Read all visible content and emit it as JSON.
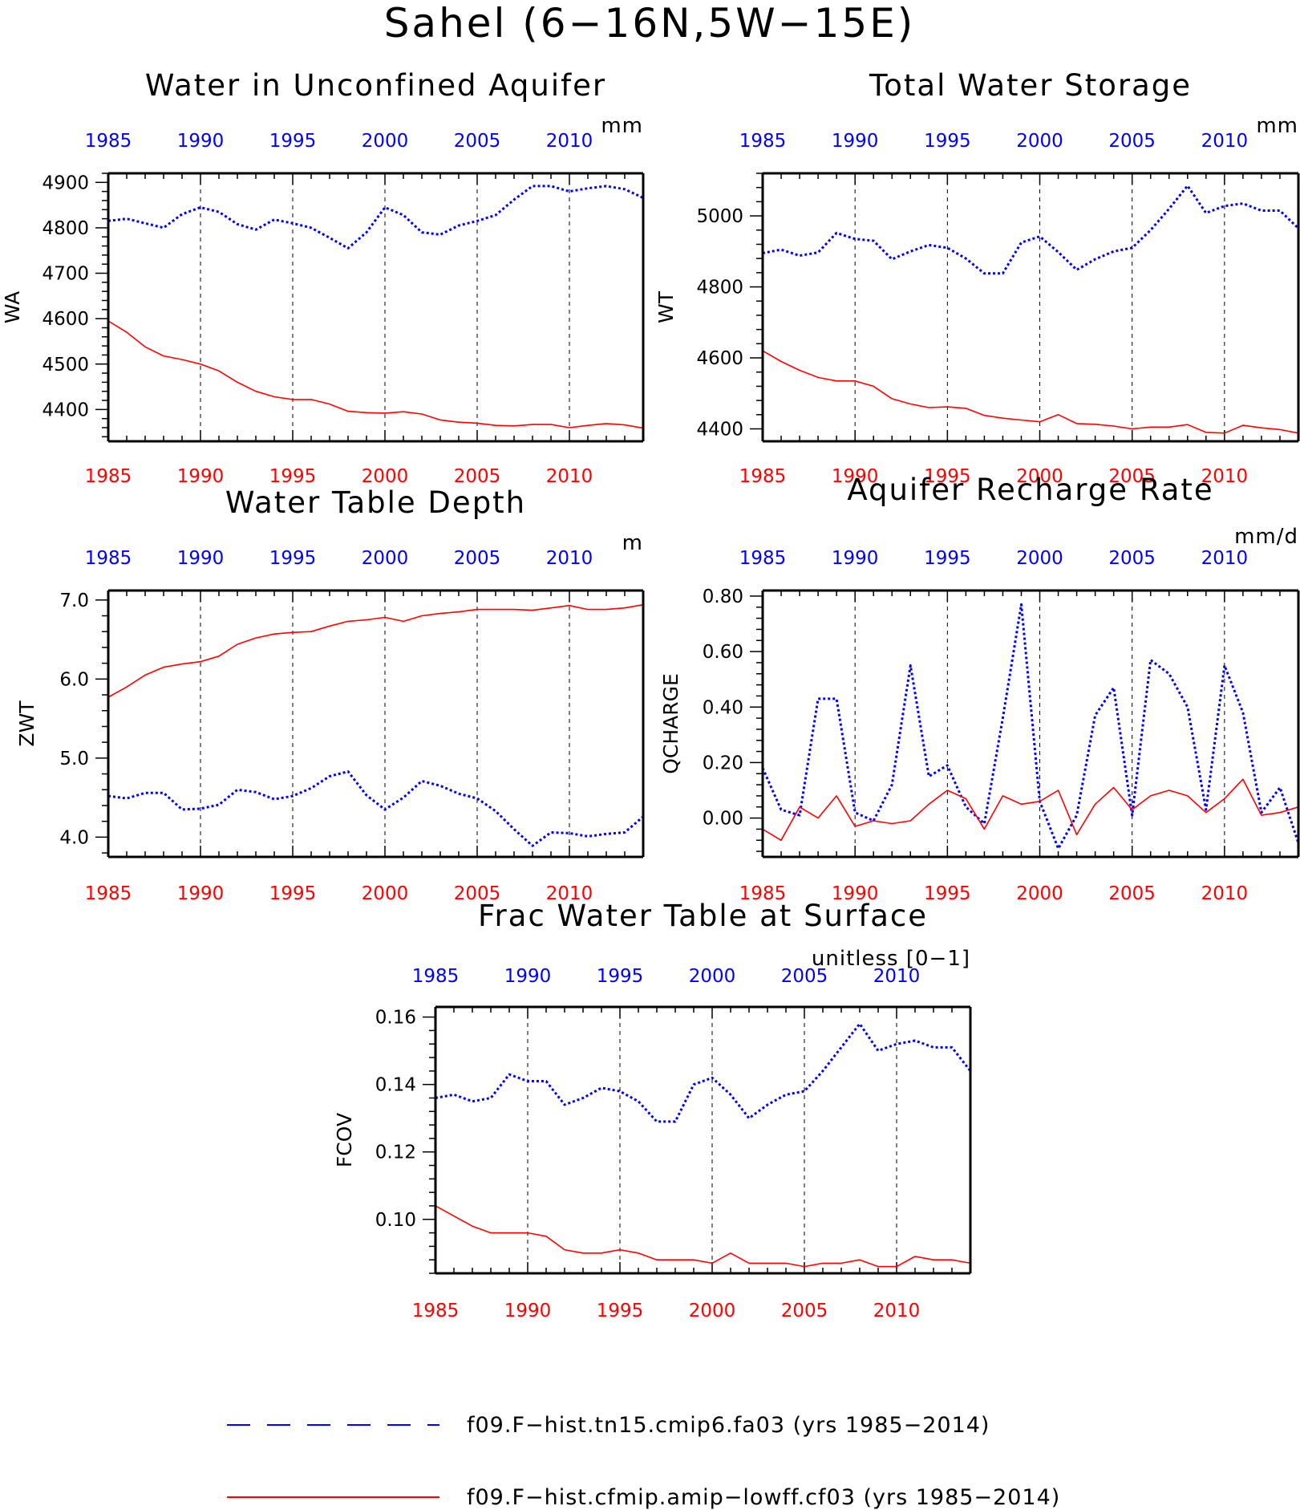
{
  "title": "Sahel (6−16N,5W−15E)",
  "colors": {
    "series_a": "#0000ff",
    "series_b": "#ff0000",
    "axis": "#000000"
  },
  "legend": [
    {
      "label": "f09.F−hist.tn15.cmip6.fa03 (yrs 1985−2014)",
      "color": "#0000ff",
      "style": "dashed"
    },
    {
      "label": "f09.F−hist.cfmip.amip−lowff.cf03 (yrs 1985−2014)",
      "color": "#ff0000",
      "style": "solid"
    }
  ],
  "chart_data": [
    {
      "type": "line",
      "title": "Water in Unconfined Aquifer",
      "unit": "mm",
      "ylabel": "WA",
      "xlim": [
        1985,
        2014
      ],
      "ylim": [
        4330,
        4920
      ],
      "xticks": [
        1985,
        1990,
        1995,
        2000,
        2005,
        2010
      ],
      "yticks": [
        4400,
        4500,
        4600,
        4700,
        4800,
        4900
      ],
      "ytick_labels": [
        "4400",
        "4500",
        "4600",
        "4700",
        "4800",
        "4900"
      ],
      "ygrid": false,
      "x": [
        1985,
        1986,
        1987,
        1988,
        1989,
        1990,
        1991,
        1992,
        1993,
        1994,
        1995,
        1996,
        1997,
        1998,
        1999,
        2000,
        2001,
        2002,
        2003,
        2004,
        2005,
        2006,
        2007,
        2008,
        2009,
        2010,
        2011,
        2012,
        2013,
        2014
      ],
      "series": [
        {
          "legend_index": 0,
          "values": [
            4815,
            4820,
            4810,
            4800,
            4830,
            4845,
            4835,
            4808,
            4796,
            4818,
            4810,
            4800,
            4778,
            4755,
            4790,
            4845,
            4828,
            4790,
            4785,
            4805,
            4815,
            4828,
            4862,
            4892,
            4892,
            4880,
            4887,
            4892,
            4885,
            4866
          ]
        },
        {
          "legend_index": 1,
          "values": [
            4595,
            4570,
            4538,
            4518,
            4510,
            4500,
            4485,
            4460,
            4440,
            4428,
            4422,
            4422,
            4412,
            4396,
            4393,
            4392,
            4395,
            4390,
            4377,
            4372,
            4370,
            4365,
            4364,
            4367,
            4367,
            4360,
            4365,
            4369,
            4366,
            4359
          ]
        }
      ]
    },
    {
      "type": "line",
      "title": "Total Water Storage",
      "unit": "mm",
      "ylabel": "WT",
      "xlim": [
        1985,
        2014
      ],
      "ylim": [
        4365,
        5120
      ],
      "xticks": [
        1985,
        1990,
        1995,
        2000,
        2005,
        2010
      ],
      "yticks": [
        4400,
        4600,
        4800,
        5000
      ],
      "ytick_labels": [
        "4400",
        "4600",
        "4800",
        "5000"
      ],
      "ygrid": false,
      "x": [
        1985,
        1986,
        1987,
        1988,
        1989,
        1990,
        1991,
        1992,
        1993,
        1994,
        1995,
        1996,
        1997,
        1998,
        1999,
        2000,
        2001,
        2002,
        2003,
        2004,
        2005,
        2006,
        2007,
        2008,
        2009,
        2010,
        2011,
        2012,
        2013,
        2014
      ],
      "series": [
        {
          "legend_index": 0,
          "values": [
            4895,
            4905,
            4888,
            4897,
            4952,
            4935,
            4930,
            4878,
            4900,
            4918,
            4910,
            4880,
            4838,
            4838,
            4925,
            4942,
            4898,
            4848,
            4878,
            4900,
            4910,
            4960,
            5020,
            5085,
            5008,
            5028,
            5035,
            5015,
            5015,
            4965
          ]
        },
        {
          "legend_index": 1,
          "values": [
            4620,
            4590,
            4565,
            4545,
            4535,
            4535,
            4520,
            4485,
            4470,
            4460,
            4462,
            4458,
            4438,
            4430,
            4425,
            4420,
            4440,
            4415,
            4413,
            4408,
            4400,
            4405,
            4405,
            4412,
            4390,
            4388,
            4410,
            4403,
            4398,
            4388
          ]
        }
      ]
    },
    {
      "type": "line",
      "title": "Water Table Depth",
      "unit": "m",
      "ylabel": "ZWT",
      "xlim": [
        1985,
        2014
      ],
      "ylim": [
        3.75,
        7.12
      ],
      "xticks": [
        1985,
        1990,
        1995,
        2000,
        2005,
        2010
      ],
      "yticks": [
        4.0,
        5.0,
        6.0,
        7.0
      ],
      "ytick_labels": [
        "4.0",
        "5.0",
        "6.0",
        "7.0"
      ],
      "ygrid": false,
      "x": [
        1985,
        1986,
        1987,
        1988,
        1989,
        1990,
        1991,
        1992,
        1993,
        1994,
        1995,
        1996,
        1997,
        1998,
        1999,
        2000,
        2001,
        2002,
        2003,
        2004,
        2005,
        2006,
        2007,
        2008,
        2009,
        2010,
        2011,
        2012,
        2013,
        2014
      ],
      "series": [
        {
          "legend_index": 0,
          "values": [
            4.52,
            4.49,
            4.56,
            4.56,
            4.35,
            4.36,
            4.41,
            4.6,
            4.57,
            4.48,
            4.52,
            4.62,
            4.77,
            4.83,
            4.53,
            4.35,
            4.5,
            4.71,
            4.65,
            4.55,
            4.49,
            4.33,
            4.1,
            3.89,
            4.06,
            4.05,
            4.01,
            4.04,
            4.06,
            4.26
          ]
        },
        {
          "legend_index": 1,
          "values": [
            5.77,
            5.9,
            6.05,
            6.15,
            6.19,
            6.22,
            6.29,
            6.44,
            6.52,
            6.57,
            6.59,
            6.6,
            6.67,
            6.73,
            6.75,
            6.78,
            6.73,
            6.8,
            6.83,
            6.85,
            6.88,
            6.88,
            6.88,
            6.87,
            6.9,
            6.93,
            6.88,
            6.88,
            6.9,
            6.94
          ]
        }
      ]
    },
    {
      "type": "line",
      "title": "Aquifer Recharge Rate",
      "unit": "mm/d",
      "ylabel": "QCHARGE",
      "xlim": [
        1985,
        2014
      ],
      "ylim": [
        -0.14,
        0.82
      ],
      "xticks": [
        1985,
        1990,
        1995,
        2000,
        2005,
        2010
      ],
      "yticks": [
        0.0,
        0.2,
        0.4,
        0.6,
        0.8
      ],
      "ytick_labels": [
        "0.00",
        "0.20",
        "0.40",
        "0.60",
        "0.80"
      ],
      "ygrid": false,
      "x": [
        1985,
        1986,
        1987,
        1988,
        1989,
        1990,
        1991,
        1992,
        1993,
        1994,
        1995,
        1996,
        1997,
        1998,
        1999,
        2000,
        2001,
        2002,
        2003,
        2004,
        2005,
        2006,
        2007,
        2008,
        2009,
        2010,
        2011,
        2012,
        2013,
        2014
      ],
      "series": [
        {
          "legend_index": 0,
          "values": [
            0.18,
            0.03,
            0.01,
            0.43,
            0.43,
            0.02,
            -0.01,
            0.12,
            0.55,
            0.15,
            0.19,
            0.04,
            -0.02,
            0.36,
            0.77,
            0.06,
            -0.11,
            0.01,
            0.37,
            0.47,
            0.01,
            0.57,
            0.52,
            0.4,
            0.03,
            0.55,
            0.38,
            0.02,
            0.11,
            -0.09
          ]
        },
        {
          "legend_index": 1,
          "values": [
            -0.04,
            -0.08,
            0.04,
            0.0,
            0.08,
            -0.03,
            -0.01,
            -0.02,
            -0.01,
            0.05,
            0.1,
            0.07,
            -0.04,
            0.08,
            0.05,
            0.06,
            0.1,
            -0.06,
            0.05,
            0.11,
            0.03,
            0.08,
            0.1,
            0.08,
            0.02,
            0.07,
            0.14,
            0.01,
            0.02,
            0.04
          ]
        }
      ]
    },
    {
      "type": "line",
      "title": "Frac Water Table at Surface",
      "unit": "unitless [0−1]",
      "ylabel": "FCOV",
      "xlim": [
        1985,
        2014
      ],
      "ylim": [
        0.084,
        0.163
      ],
      "xticks": [
        1985,
        1990,
        1995,
        2000,
        2005,
        2010
      ],
      "yticks": [
        0.1,
        0.12,
        0.14,
        0.16
      ],
      "ytick_labels": [
        "0.10",
        "0.12",
        "0.14",
        "0.16"
      ],
      "ygrid": false,
      "x": [
        1985,
        1986,
        1987,
        1988,
        1989,
        1990,
        1991,
        1992,
        1993,
        1994,
        1995,
        1996,
        1997,
        1998,
        1999,
        2000,
        2001,
        2002,
        2003,
        2004,
        2005,
        2006,
        2007,
        2008,
        2009,
        2010,
        2011,
        2012,
        2013,
        2014
      ],
      "series": [
        {
          "legend_index": 0,
          "values": [
            0.136,
            0.137,
            0.135,
            0.136,
            0.143,
            0.141,
            0.141,
            0.134,
            0.136,
            0.139,
            0.138,
            0.135,
            0.129,
            0.129,
            0.14,
            0.142,
            0.137,
            0.13,
            0.134,
            0.137,
            0.138,
            0.144,
            0.151,
            0.158,
            0.15,
            0.152,
            0.153,
            0.151,
            0.151,
            0.144
          ]
        },
        {
          "legend_index": 1,
          "values": [
            0.104,
            0.101,
            0.098,
            0.096,
            0.096,
            0.096,
            0.095,
            0.091,
            0.09,
            0.09,
            0.091,
            0.09,
            0.088,
            0.088,
            0.088,
            0.087,
            0.09,
            0.087,
            0.087,
            0.087,
            0.086,
            0.087,
            0.087,
            0.088,
            0.086,
            0.086,
            0.089,
            0.088,
            0.088,
            0.087
          ]
        }
      ]
    }
  ]
}
